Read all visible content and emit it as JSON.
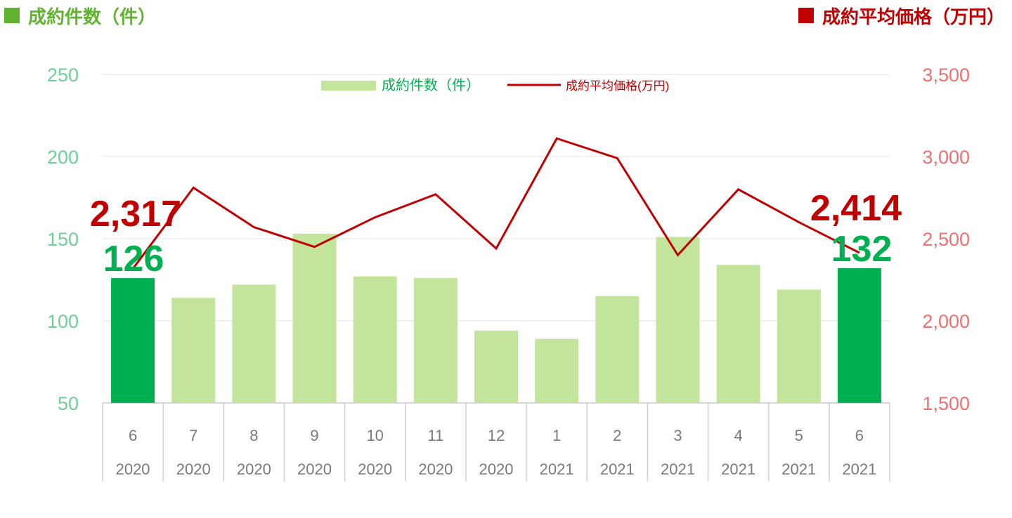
{
  "header": {
    "left_title": "成約件数（件）",
    "right_title": "成約平均価格（万円）"
  },
  "colors": {
    "bar": "#c3e59b",
    "bar_highlight": "#00b050",
    "line": "#c00000",
    "left_axis": "#6fcf97",
    "right_axis": "#f07070",
    "header_green": "#5fb32e",
    "header_red": "#c00000"
  },
  "chart_data": {
    "type": "bar+line",
    "categories": [
      "6",
      "7",
      "8",
      "9",
      "10",
      "11",
      "12",
      "1",
      "2",
      "3",
      "4",
      "5",
      "6"
    ],
    "years": [
      "2020",
      "2020",
      "2020",
      "2020",
      "2020",
      "2020",
      "2020",
      "2021",
      "2021",
      "2021",
      "2021",
      "2021",
      "2021"
    ],
    "series": [
      {
        "name": "成約件数（件）",
        "type": "bar",
        "axis": "left",
        "values": [
          126,
          114,
          122,
          153,
          127,
          126,
          94,
          89,
          115,
          151,
          134,
          119,
          132
        ]
      },
      {
        "name": "成約平均価格(万円)",
        "type": "line",
        "axis": "right",
        "values": [
          2317,
          2810,
          2570,
          2450,
          2630,
          2770,
          2440,
          3110,
          2990,
          2400,
          2800,
          2600,
          2414
        ]
      }
    ],
    "highlight_indices": [
      0,
      12
    ],
    "left_axis": {
      "min": 50,
      "max": 250,
      "ticks": [
        "50",
        "100",
        "150",
        "200",
        "250"
      ]
    },
    "right_axis": {
      "min": 1500,
      "max": 3500,
      "ticks": [
        "1,500",
        "2,000",
        "2,500",
        "3,000",
        "3,500"
      ]
    },
    "annotations": {
      "first_price": "2,317",
      "first_count": "126",
      "last_price": "2,414",
      "last_count": "132"
    },
    "legend": {
      "bar_label": "成約件数（件）",
      "line_label": "成約平均価格(万円)",
      "position": "top-center"
    },
    "grid": true
  }
}
